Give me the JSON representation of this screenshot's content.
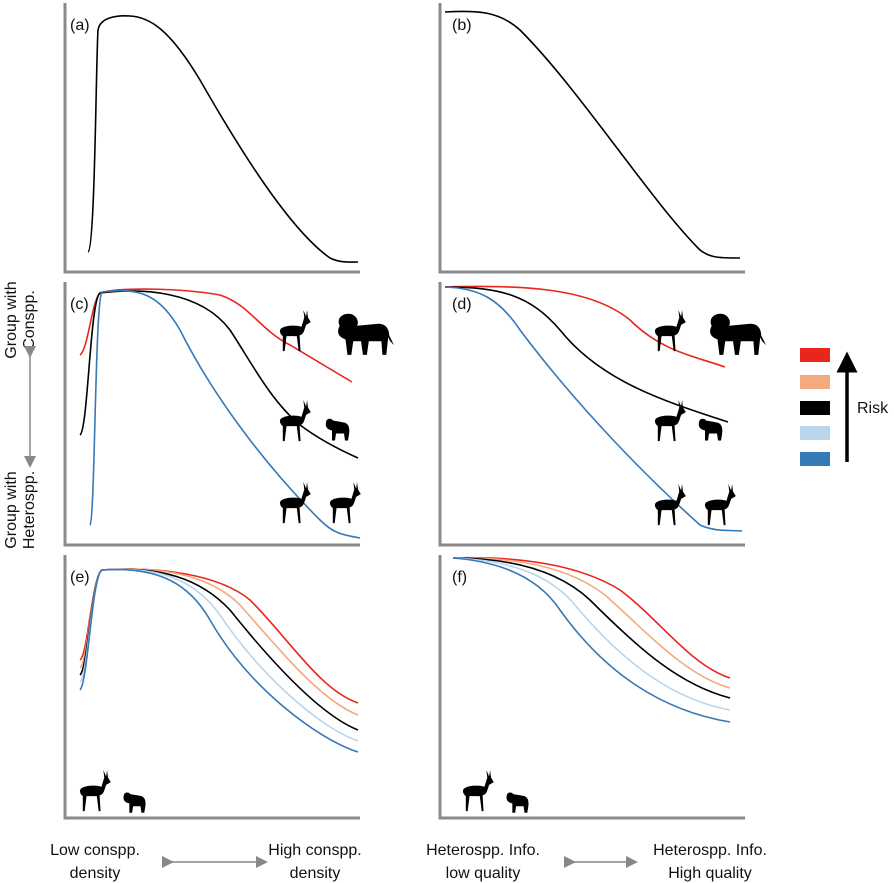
{
  "panels": {
    "a": "(a)",
    "b": "(b)",
    "c": "(c)",
    "d": "(d)",
    "e": "(e)",
    "f": "(f)"
  },
  "y_axis": {
    "top": [
      "Group with",
      "Conspp."
    ],
    "bottom": [
      "Group with",
      "Heterospp."
    ]
  },
  "x_axis": {
    "left_low": [
      "Low conspp.",
      "density"
    ],
    "left_high": [
      "High conspp.",
      "density"
    ],
    "right_low": [
      "Heterospp. Info.",
      "low quality"
    ],
    "right_high": [
      "Heterospp. Info.",
      "High quality"
    ]
  },
  "legend": {
    "label": "Risk"
  }
}
